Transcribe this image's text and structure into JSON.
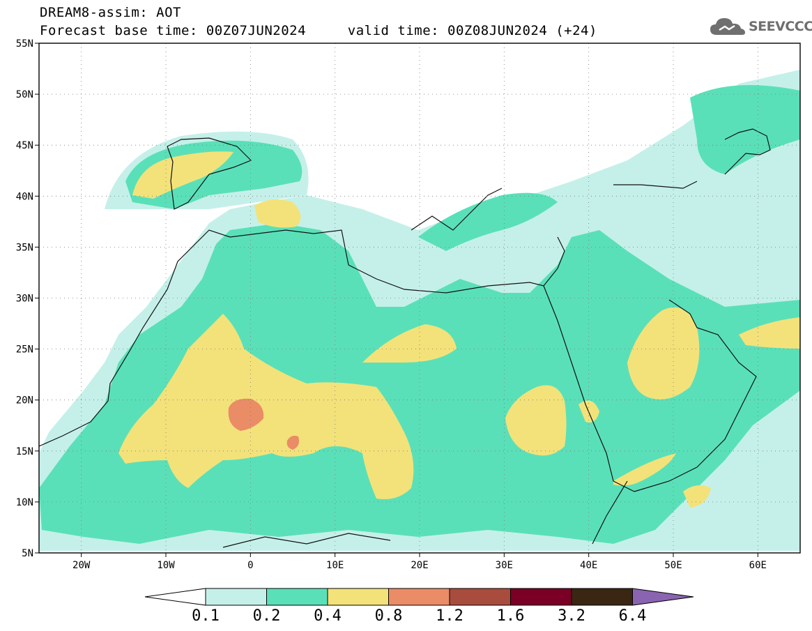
{
  "header": {
    "title": "DREAM8-assim: AOT",
    "base_time_line": "Forecast base time: 00Z07JUN2024",
    "valid_time_line": "valid time: 00Z08JUN2024 (+24)"
  },
  "logo": {
    "text": "SEEVCCC",
    "icon": "cloud-icon"
  },
  "map": {
    "lat_labels": [
      "55N",
      "50N",
      "45N",
      "40N",
      "35N",
      "30N",
      "25N",
      "20N",
      "15N",
      "10N",
      "5N"
    ],
    "lon_labels": [
      "20W",
      "10W",
      "0",
      "10E",
      "20E",
      "30E",
      "40E",
      "50E",
      "60E"
    ],
    "lat_range": [
      5,
      55
    ],
    "lon_range": [
      -25,
      65
    ],
    "grid": "dotted"
  },
  "legend": {
    "levels": [
      "0.1",
      "0.2",
      "0.4",
      "0.8",
      "1.2",
      "1.6",
      "3.2",
      "6.4"
    ],
    "colors": [
      "#ffffff",
      "#c5f0ea",
      "#5ae0b8",
      "#f3e27a",
      "#ea8c66",
      "#a84c3e",
      "#7a0025",
      "#3a2612",
      "#8a64b0"
    ]
  }
}
